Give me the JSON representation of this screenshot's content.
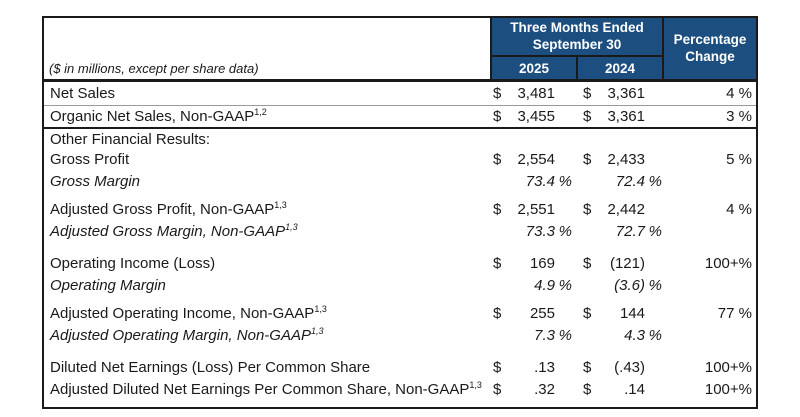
{
  "colors": {
    "header_blue": "#1c4f7f",
    "border_dark": "#1a1a1a",
    "rule_light": "#9a9a9a",
    "header_text": "#ffffff",
    "body_text": "#1a1a1a"
  },
  "table": {
    "note": "($ in millions, except per share data)",
    "header": {
      "period_group": "Three Months Ended September 30",
      "year_left": "2025",
      "year_right": "2024",
      "pct_change": "Percentage Change"
    },
    "rows": [
      {
        "label": "Net Sales",
        "sup": "",
        "italic": false,
        "rule_before": "",
        "spacer_before": "",
        "c2025": {
          "sym": "$",
          "val": "3,481",
          "suf": ""
        },
        "c2024": {
          "sym": "$",
          "val": "3,361",
          "suf": ""
        },
        "pct": "4 %"
      },
      {
        "label": "Organic Net Sales, Non-GAAP",
        "sup": "1,2",
        "italic": false,
        "rule_before": "thin",
        "spacer_before": "",
        "c2025": {
          "sym": "$",
          "val": "3,455",
          "suf": ""
        },
        "c2024": {
          "sym": "$",
          "val": "3,361",
          "suf": ""
        },
        "pct": "3 %"
      },
      {
        "label": "Other Financial Results:",
        "sup": "",
        "italic": false,
        "rule_before": "thick",
        "spacer_before": "",
        "c2025": {
          "sym": "",
          "val": "",
          "suf": ""
        },
        "c2024": {
          "sym": "",
          "val": "",
          "suf": ""
        },
        "pct": ""
      },
      {
        "label": "Gross Profit",
        "sup": "",
        "italic": false,
        "rule_before": "",
        "spacer_before": "",
        "c2025": {
          "sym": "$",
          "val": "2,554",
          "suf": ""
        },
        "c2024": {
          "sym": "$",
          "val": "2,433",
          "suf": ""
        },
        "pct": "5 %"
      },
      {
        "label": "Gross Margin",
        "sup": "",
        "italic": true,
        "rule_before": "",
        "spacer_before": "",
        "c2025": {
          "sym": "",
          "val": "73.4",
          "suf": "%"
        },
        "c2024": {
          "sym": "",
          "val": "72.4",
          "suf": "%"
        },
        "pct": ""
      },
      {
        "label": "Adjusted Gross Profit, Non-GAAP",
        "sup": "1,3",
        "italic": false,
        "rule_before": "",
        "spacer_before": "small",
        "c2025": {
          "sym": "$",
          "val": "2,551",
          "suf": ""
        },
        "c2024": {
          "sym": "$",
          "val": "2,442",
          "suf": ""
        },
        "pct": "4 %"
      },
      {
        "label": "Adjusted Gross Margin, Non-GAAP",
        "sup": "1,3",
        "italic": true,
        "rule_before": "",
        "spacer_before": "",
        "c2025": {
          "sym": "",
          "val": "73.3",
          "suf": "%"
        },
        "c2024": {
          "sym": "",
          "val": "72.7",
          "suf": "%"
        },
        "pct": ""
      },
      {
        "label": "Operating Income (Loss)",
        "sup": "",
        "italic": false,
        "rule_before": "",
        "spacer_before": "large",
        "c2025": {
          "sym": "$",
          "val": "169",
          "suf": ""
        },
        "c2024": {
          "sym": "$",
          "val": "(121)",
          "suf": ""
        },
        "pct": "100+%"
      },
      {
        "label": "Operating Margin",
        "sup": "",
        "italic": true,
        "rule_before": "",
        "spacer_before": "",
        "c2025": {
          "sym": "",
          "val": "4.9",
          "suf": "%"
        },
        "c2024": {
          "sym": "",
          "val": "(3.6)",
          "suf": "%"
        },
        "pct": ""
      },
      {
        "label": "Adjusted Operating Income, Non-GAAP",
        "sup": "1,3",
        "italic": false,
        "rule_before": "",
        "spacer_before": "small",
        "c2025": {
          "sym": "$",
          "val": "255",
          "suf": ""
        },
        "c2024": {
          "sym": "$",
          "val": "144",
          "suf": ""
        },
        "pct": "77 %"
      },
      {
        "label": "Adjusted Operating Margin, Non-GAAP",
        "sup": "1,3",
        "italic": true,
        "rule_before": "",
        "spacer_before": "",
        "c2025": {
          "sym": "",
          "val": "7.3",
          "suf": "%"
        },
        "c2024": {
          "sym": "",
          "val": "4.3",
          "suf": "%"
        },
        "pct": ""
      },
      {
        "label": "Diluted Net Earnings (Loss) Per Common Share",
        "sup": "",
        "italic": false,
        "rule_before": "",
        "spacer_before": "large",
        "c2025": {
          "sym": "$",
          "val": ".13",
          "suf": ""
        },
        "c2024": {
          "sym": "$",
          "val": "(.43)",
          "suf": ""
        },
        "pct": "100+%"
      },
      {
        "label": "Adjusted Diluted Net Earnings Per Common Share, Non-GAAP",
        "sup": "1,3",
        "italic": false,
        "rule_before": "",
        "spacer_before": "",
        "c2025": {
          "sym": "$",
          "val": ".32",
          "suf": ""
        },
        "c2024": {
          "sym": "$",
          "val": ".14",
          "suf": ""
        },
        "pct": "100+%"
      }
    ]
  }
}
